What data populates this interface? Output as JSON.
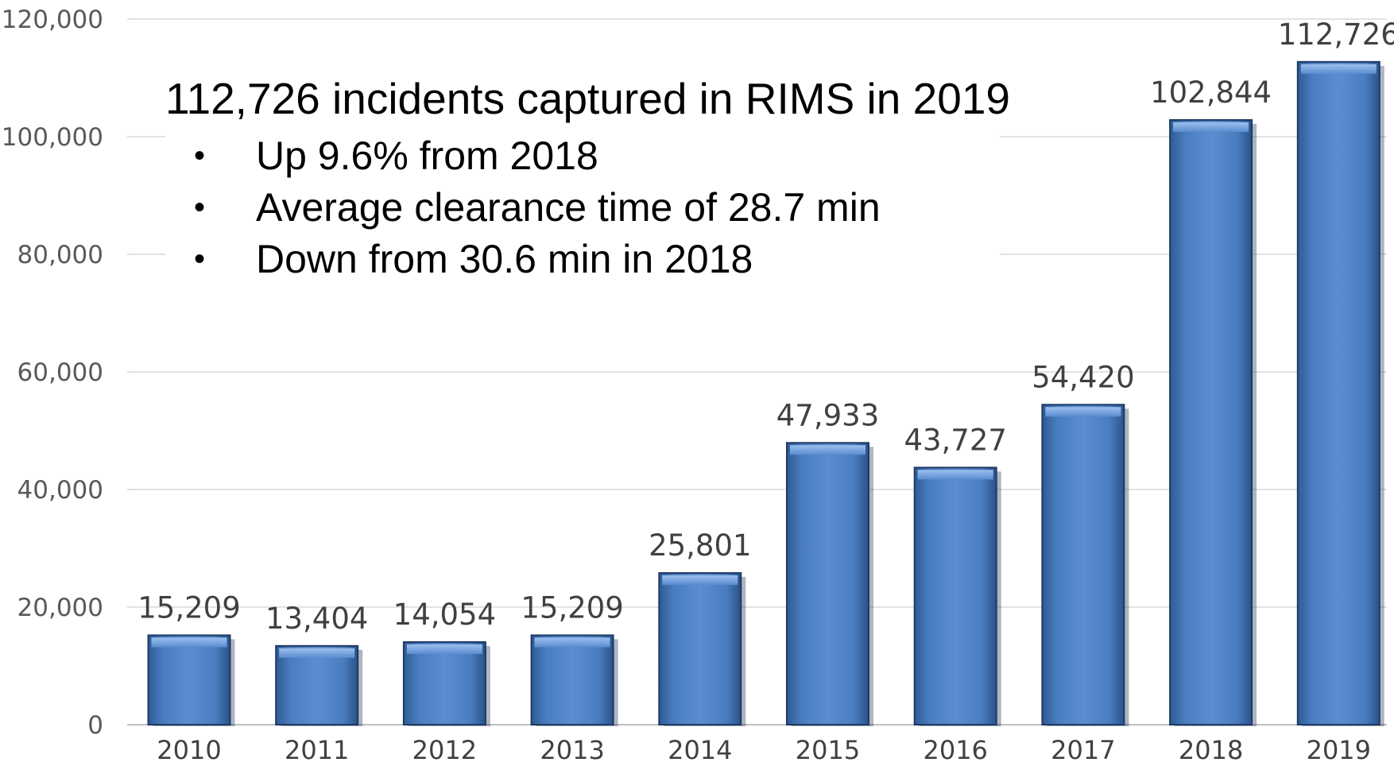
{
  "chart_data": {
    "type": "bar",
    "title": "",
    "xlabel": "",
    "ylabel": "",
    "categories": [
      "2010",
      "2011",
      "2012",
      "2013",
      "2014",
      "2015",
      "2016",
      "2017",
      "2018",
      "2019"
    ],
    "values": [
      15209,
      13404,
      14054,
      15209,
      25801,
      47933,
      43727,
      54420,
      102844,
      112726
    ],
    "data_labels": [
      "15,209",
      "13,404",
      "14,054",
      "15,209",
      "25,801",
      "47,933",
      "43,727",
      "54,420",
      "102,844",
      "112,726"
    ],
    "ylim": [
      0,
      120000
    ],
    "yticks": [
      0,
      20000,
      40000,
      60000,
      80000,
      100000,
      120000
    ],
    "ytick_labels": [
      "0",
      "20,000",
      "40,000",
      "60,000",
      "80,000",
      "100,000",
      "120,000"
    ],
    "grid": true,
    "legend": "none",
    "bar_color": "#4f81bd"
  },
  "callout": {
    "title": "112,726 incidents captured in RIMS in 2019",
    "bullet_symbol": "•",
    "bullets": [
      "Up 9.6% from 2018",
      "Average clearance time of 28.7 min",
      "Down from 30.6 min in 2018"
    ]
  }
}
